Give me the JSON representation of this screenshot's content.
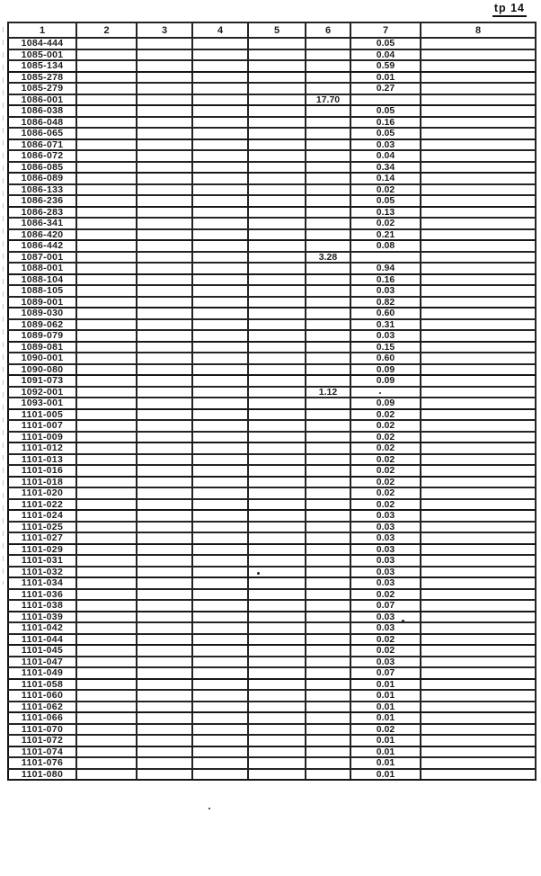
{
  "page": {
    "corner_label": "tp 14"
  },
  "table": {
    "headers": [
      "1",
      "2",
      "3",
      "4",
      "5",
      "6",
      "7",
      "8"
    ],
    "columns_meaning": [
      "id",
      "empty",
      "empty",
      "empty",
      "empty",
      "col6_value",
      "col7_value",
      "empty"
    ],
    "rows": [
      [
        "1084-444",
        "",
        "0.05"
      ],
      [
        "1085-001",
        "",
        "0.04"
      ],
      [
        "1085-134",
        "",
        "0.59"
      ],
      [
        "1085-278",
        "",
        "0.01"
      ],
      [
        "1085-279",
        "",
        "0.27"
      ],
      [
        "1086-001",
        "17.70",
        ""
      ],
      [
        "1086-038",
        "",
        "0.05"
      ],
      [
        "1086-048",
        "",
        "0.16"
      ],
      [
        "1086-065",
        "",
        "0.05"
      ],
      [
        "1086-071",
        "",
        "0.03"
      ],
      [
        "1086-072",
        "",
        "0.04"
      ],
      [
        "1086-085",
        "",
        "0.34"
      ],
      [
        "1086-089",
        "",
        "0.14"
      ],
      [
        "1086-133",
        "",
        "0.02"
      ],
      [
        "1086-236",
        "",
        "0.05"
      ],
      [
        "1086-283",
        "",
        "0.13"
      ],
      [
        "1086-341",
        "",
        "0.02"
      ],
      [
        "1086-420",
        "",
        "0.21"
      ],
      [
        "1086-442",
        "",
        "0.08"
      ],
      [
        "1087-001",
        "3.28",
        ""
      ],
      [
        "1088-001",
        "",
        "0.94"
      ],
      [
        "1088-104",
        "",
        "0.16"
      ],
      [
        "1088-105",
        "",
        "0.03"
      ],
      [
        "1089-001",
        "",
        "0.82"
      ],
      [
        "1089-030",
        "",
        "0.60"
      ],
      [
        "1089-062",
        "",
        "0.31"
      ],
      [
        "1089-079",
        "",
        "0.03"
      ],
      [
        "1089-081",
        "",
        "0.15"
      ],
      [
        "1090-001",
        "",
        "0.60"
      ],
      [
        "1090-080",
        "",
        "0.09"
      ],
      [
        "1091-073",
        "",
        "0.09"
      ],
      [
        "1092-001",
        "1.12",
        ""
      ],
      [
        "1093-001",
        "",
        "0.09"
      ],
      [
        "1101-005",
        "",
        "0.02"
      ],
      [
        "1101-007",
        "",
        "0.02"
      ],
      [
        "1101-009",
        "",
        "0.02"
      ],
      [
        "1101-012",
        "",
        "0.02"
      ],
      [
        "1101-013",
        "",
        "0.02"
      ],
      [
        "1101-016",
        "",
        "0.02"
      ],
      [
        "1101-018",
        "",
        "0.02"
      ],
      [
        "1101-020",
        "",
        "0.02"
      ],
      [
        "1101-022",
        "",
        "0.02"
      ],
      [
        "1101-024",
        "",
        "0.03"
      ],
      [
        "1101-025",
        "",
        "0.03"
      ],
      [
        "1101-027",
        "",
        "0.03"
      ],
      [
        "1101-029",
        "",
        "0.03"
      ],
      [
        "1101-031",
        "",
        "0.03"
      ],
      [
        "1101-032",
        "",
        "0.03"
      ],
      [
        "1101-034",
        "",
        "0.03"
      ],
      [
        "1101-036",
        "",
        "0.02"
      ],
      [
        "1101-038",
        "",
        "0.07"
      ],
      [
        "1101-039",
        "",
        "0.03"
      ],
      [
        "1101-042",
        "",
        "0.03"
      ],
      [
        "1101-044",
        "",
        "0.02"
      ],
      [
        "1101-045",
        "",
        "0.02"
      ],
      [
        "1101-047",
        "",
        "0.03"
      ],
      [
        "1101-049",
        "",
        "0.07"
      ],
      [
        "1101-058",
        "",
        "0.01"
      ],
      [
        "1101-060",
        "",
        "0.01"
      ],
      [
        "1101-062",
        "",
        "0.01"
      ],
      [
        "1101-066",
        "",
        "0.01"
      ],
      [
        "1101-070",
        "",
        "0.02"
      ],
      [
        "1101-072",
        "",
        "0.01"
      ],
      [
        "1101-074",
        "",
        "0.01"
      ],
      [
        "1101-076",
        "",
        "0.01"
      ],
      [
        "1101-080",
        "",
        "0.01"
      ]
    ]
  }
}
